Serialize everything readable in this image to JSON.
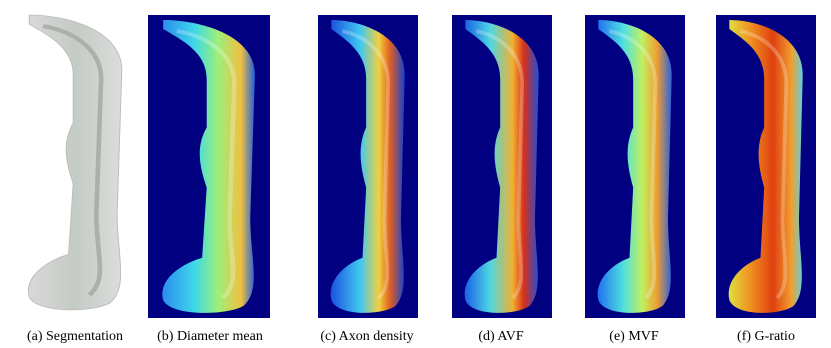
{
  "figure": {
    "panels": [
      {
        "caption": "(a) Segmentation"
      },
      {
        "caption": "(b) Diameter mean"
      },
      {
        "caption": "(c) Axon density"
      },
      {
        "caption": "(d) AVF"
      },
      {
        "caption": "(e) MVF"
      },
      {
        "caption": "(f) G-ratio"
      }
    ]
  }
}
